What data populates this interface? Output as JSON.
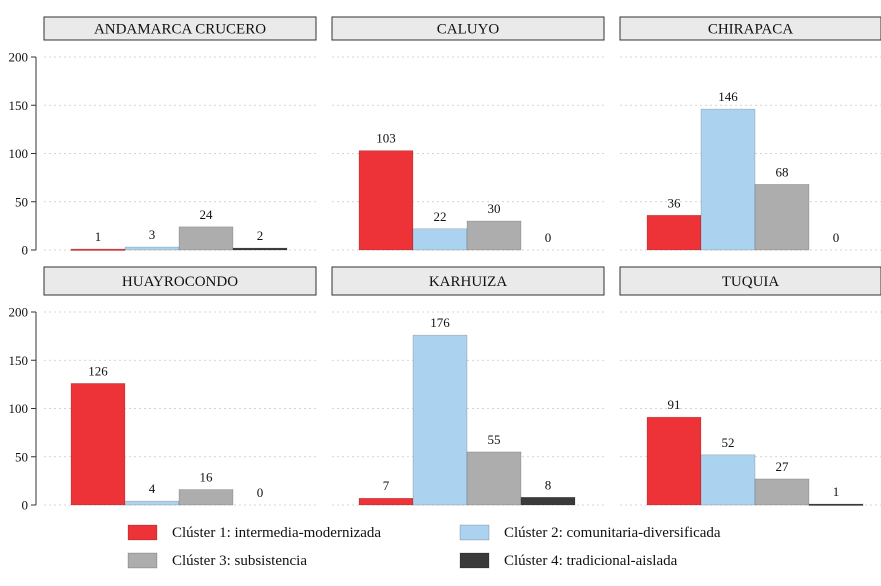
{
  "chart_data": {
    "type": "bar",
    "ylim": [
      0,
      200
    ],
    "yticks": [
      0,
      50,
      100,
      150,
      200
    ],
    "grid": true,
    "legend_position": "bottom",
    "series": [
      {
        "name": "Clúster 1: intermedia-modernizada",
        "color": "#ee3338"
      },
      {
        "name": "Clúster 2: comunitaria-diversificada",
        "color": "#abd3f0"
      },
      {
        "name": "Clúster 3: subsistencia",
        "color": "#adadad"
      },
      {
        "name": "Clúster 4: tradicional-aislada",
        "color": "#3a3a3a"
      }
    ],
    "panels": [
      {
        "title": "ANDAMARCA CRUCERO",
        "values": [
          1,
          3,
          24,
          2
        ]
      },
      {
        "title": "CALUYO",
        "values": [
          103,
          22,
          30,
          0
        ]
      },
      {
        "title": "CHIRAPACA",
        "values": [
          36,
          146,
          68,
          0
        ]
      },
      {
        "title": "HUAYROCONDO",
        "values": [
          126,
          4,
          16,
          0
        ]
      },
      {
        "title": "KARHUIZA",
        "values": [
          7,
          176,
          55,
          8
        ]
      },
      {
        "title": "TUQUIA",
        "values": [
          91,
          52,
          27,
          1
        ]
      }
    ]
  }
}
